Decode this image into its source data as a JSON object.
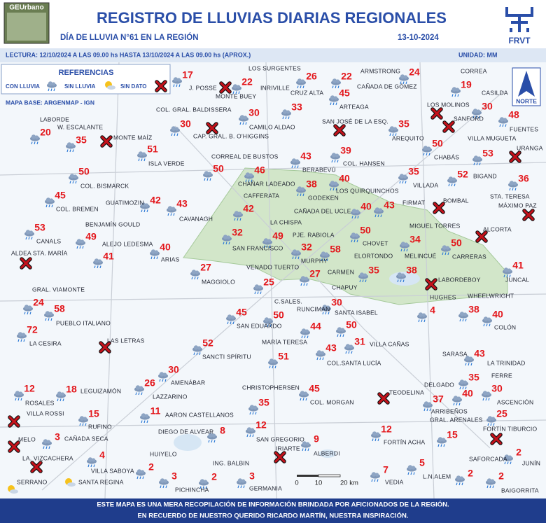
{
  "header": {
    "logo_left": "GEUrbano",
    "title": "REGISTRO DE LLUVIAS DIARIAS REGIONALES",
    "subtitle": "DÍA DE LLUVIA N°61 EN LA REGIÓN",
    "date": "13-10-2024",
    "logo_right": "FRVT"
  },
  "info": {
    "reading": "LECTURA: 12/10/2024 A LAS 09.00 hs HASTA 13/10/2024 A LAS 09.00 hs  (APROX.)",
    "unit": "UNIDAD: MM"
  },
  "legend": {
    "title": "REFERENCIAS",
    "rain": "CON LLUVIA",
    "no_rain": "SIN LLUVIA",
    "no_data": "SIN DATO"
  },
  "base_map": "MAPA BASE: ARGENMAP - IGN",
  "north": "NORTE",
  "scale": [
    "0",
    "10",
    "20 km"
  ],
  "stations": [
    {
      "name": "J. POSSE",
      "value": 17
    },
    {
      "name": "MONTE BUEY",
      "estado": "sin_dato"
    },
    {
      "name": "LOS SURGENTES",
      "value": 26
    },
    {
      "name": "INRIVILLE",
      "value": 22
    },
    {
      "name": "ARMSTRONG",
      "value": 24
    },
    {
      "name": "CAÑADA DE GÓMEZ",
      "value": 22
    },
    {
      "name": "CORREA",
      "value": 19
    },
    {
      "name": "CRUZ ALTA",
      "value": 33
    },
    {
      "name": "ARTEAGA",
      "value": 45
    },
    {
      "name": "LOS MOLINOS",
      "estado": "sin_dato"
    },
    {
      "name": "CASILDA",
      "value": 30
    },
    {
      "name": "COL. GRAL. BALDISSERA",
      "value": 30
    },
    {
      "name": "CAMILO ALDAO",
      "value": 30
    },
    {
      "name": "SAN JOSÉ DE LA ESQ.",
      "estado": "sin_dato"
    },
    {
      "name": "AREQUITO",
      "value": 35
    },
    {
      "name": "SANFORD",
      "estado": "sin_dato"
    },
    {
      "name": "FUENTES",
      "value": 48
    },
    {
      "name": "LABORDE",
      "value": 20
    },
    {
      "name": "W. ESCALANTE",
      "value": 35
    },
    {
      "name": "MONTE MAÍZ",
      "estado": "sin_dato"
    },
    {
      "name": "CAP. GRAL. B. O'HIGGINS",
      "estado": "sin_dato"
    },
    {
      "name": "ISLA VERDE",
      "value": 51
    },
    {
      "name": "CORREAL DE BUSTOS",
      "value": 50
    },
    {
      "name": "BERABEVÚ",
      "value": 43
    },
    {
      "name": "COL. HANSEN",
      "value": 39
    },
    {
      "name": "CHABÁS",
      "value": 50
    },
    {
      "name": "VILLA MUGUETA",
      "value": 53
    },
    {
      "name": "URANGA",
      "estado": "sin_dato"
    },
    {
      "name": "COL. BISMARCK",
      "value": 50
    },
    {
      "name": "CHAÑAR LADEADO",
      "value": 46
    },
    {
      "name": "VILLADA",
      "value": 35
    },
    {
      "name": "BIGAND",
      "value": 52
    },
    {
      "name": "STA. TERESA",
      "value": 36
    },
    {
      "name": "GODEKEN",
      "value": 38
    },
    {
      "name": "LOS QUIRQUINCHOS",
      "value": 40
    },
    {
      "name": "CAFFERATA",
      "value": 42
    },
    {
      "name": "COL. BREMEN",
      "value": 45
    },
    {
      "name": "GUATIMOZIN",
      "value": 42
    },
    {
      "name": "CAVANAGH",
      "value": 43
    },
    {
      "name": "CAÑADA DEL UCLE",
      "value": 40
    },
    {
      "name": "FIRMAT",
      "value": 43
    },
    {
      "name": "BOMBAL",
      "estado": "sin_dato"
    },
    {
      "name": "MÁXIMO PAZ",
      "estado": "sin_dato"
    },
    {
      "name": "CANALS",
      "value": 53
    },
    {
      "name": "BENJAMÍN GOULD",
      "value": 49
    },
    {
      "name": "LA CHISPA",
      "value": 49
    },
    {
      "name": "SAN FRANCISCO",
      "value": 32
    },
    {
      "name": "PJE. RABIOLA",
      "value": 58
    },
    {
      "name": "CHOVET",
      "value": 50
    },
    {
      "name": "MIGUEL TORRES",
      "value": 34
    },
    {
      "name": "ALCORTA",
      "estado": "sin_dato"
    },
    {
      "name": "ALEJO LEDESMA",
      "value": 41
    },
    {
      "name": "ARIAS",
      "value": 40
    },
    {
      "name": "MURPHY",
      "value": 32
    },
    {
      "name": "CARRERAS",
      "value": 50
    },
    {
      "name": "ALDEA STA. MARÍA",
      "estado": "sin_dato"
    },
    {
      "name": "ELORTONDO",
      "value": 35
    },
    {
      "name": "MELINCUÉ",
      "value": 38
    },
    {
      "name": "MAGGIOLO",
      "value": 27
    },
    {
      "name": "VENADO TUERTO",
      "value": 25
    },
    {
      "name": "CARMEN",
      "value": 27
    },
    {
      "name": "LABORDEBOY",
      "estado": "sin_dato"
    },
    {
      "name": "JUNCAL",
      "value": 41
    },
    {
      "name": "CHAPUY",
      "value": 30
    },
    {
      "name": "GRAL. VIAMONTE",
      "value": 24
    },
    {
      "name": "C.SALES.",
      "value": 50
    },
    {
      "name": "HUGHES",
      "value": 4
    },
    {
      "name": "WHEELWRIGHT",
      "value": 38
    },
    {
      "name": "PUEBLO ITALIANO",
      "value": 58
    },
    {
      "name": "SAN EDUARDO",
      "value": 45
    },
    {
      "name": "RUNCIMAN",
      "value": 44
    },
    {
      "name": "SANTA ISABEL",
      "value": 50
    },
    {
      "name": "COLÓN",
      "value": 40
    },
    {
      "name": "LA CESIRA",
      "value": 72
    },
    {
      "name": "LAS LETRAS",
      "estado": "sin_dato"
    },
    {
      "name": "SANCTI SPÍRITU",
      "value": 52
    },
    {
      "name": "MARÍA TERESA",
      "value": 51
    },
    {
      "name": "COL.SANTA LUCÍA",
      "value": 43
    },
    {
      "name": "VILLA CAÑAS",
      "value": 31
    },
    {
      "name": "SARASA",
      "value": 43
    },
    {
      "name": "LA TRINIDAD",
      "value": 35
    },
    {
      "name": "FERRE",
      "value": 30
    },
    {
      "name": "AMENÁBAR",
      "value": 30
    },
    {
      "name": "LAZZARINO",
      "value": 26
    },
    {
      "name": "CHRISTOPHERSEN",
      "value": 35
    },
    {
      "name": "COL. MORGAN",
      "value": 45
    },
    {
      "name": "DELGADO",
      "value": 40
    },
    {
      "name": "ARRIBEÑOS",
      "value": 37
    },
    {
      "name": "TEODELINA",
      "estado": "sin_dato"
    },
    {
      "name": "ASCENCIÓN",
      "value": 25
    },
    {
      "name": "ROSALES",
      "value": 12
    },
    {
      "name": "LEGUIZAMÓN",
      "value": 18
    },
    {
      "name": "GRAL. ARENALES",
      "value": 15
    },
    {
      "name": "AARON CASTELLANOS",
      "value": 11
    },
    {
      "name": "RUFINO",
      "value": 15
    },
    {
      "name": "VILLA ROSSI",
      "estado": "sin_dato"
    },
    {
      "name": "DIEGO DE ALVEAR",
      "value": 8
    },
    {
      "name": "SAN GREGORIO",
      "value": 12
    },
    {
      "name": "FORTÍN ACHA",
      "value": 12
    },
    {
      "name": "FORTÍN TIBURCIO",
      "estado": "sin_dato"
    },
    {
      "name": "CAÑADA SECA",
      "value": 3
    },
    {
      "name": "MELO",
      "estado": "sin_dato"
    },
    {
      "name": "IRIARTE",
      "estado": "sin_dato"
    },
    {
      "name": "ALBERDI",
      "value": 9
    },
    {
      "name": "LA. VIZCACHERA",
      "estado": "sin_dato"
    },
    {
      "name": "VILLA SABOYA",
      "value": 4
    },
    {
      "name": "HUIYELO",
      "value": 2
    },
    {
      "name": "ING. BALBIN",
      "value": 2
    },
    {
      "name": "L.N.ALEM",
      "value": 5
    },
    {
      "name": "JUNÍN",
      "value": 2
    },
    {
      "name": "SAFORCADA",
      "value": 2
    },
    {
      "name": "VEDIA",
      "value": 7
    },
    {
      "name": "PICHINCHA",
      "value": 3
    },
    {
      "name": "GERMANIA",
      "value": 3
    },
    {
      "name": "BAIGORRITA",
      "value": 2
    },
    {
      "name": "SERRANO",
      "estado": "sin_lluvia"
    },
    {
      "name": "SANTA REGINA",
      "estado": "sin_lluvia"
    }
  ],
  "footer": [
    "ESTE MAPA ES UNA MERA RECOPILACIÓN DE INFORMACIÓN BRINDADA POR AFICIONADOS DE LA REGIÓN.",
    "EN RECUERDO DE NUESTRO QUERIDO RICARDO MARTÍN, NUESTRA INSPIRACIÓN."
  ]
}
